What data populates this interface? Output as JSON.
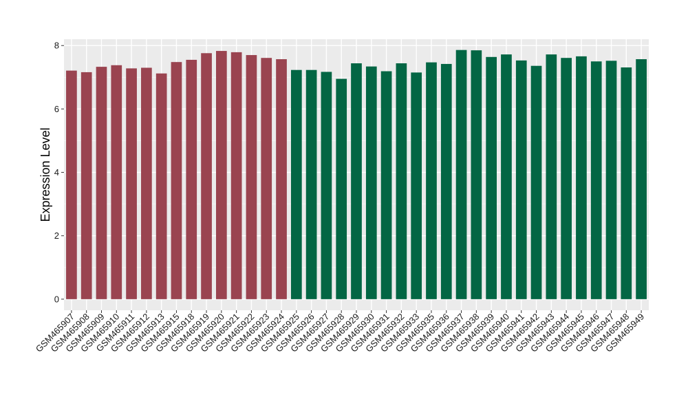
{
  "chart_data": {
    "type": "bar",
    "title": "",
    "xlabel": "",
    "ylabel": "Expression Level",
    "ylim": [
      -0.35,
      8.2
    ],
    "yticks": [
      0,
      2,
      4,
      6,
      8
    ],
    "grid": true,
    "background": "#ebebeb",
    "group_colors": [
      "#9a4450",
      "#036644"
    ],
    "categories": [
      "GSM465907",
      "GSM465908",
      "GSM465909",
      "GSM465910",
      "GSM465911",
      "GSM465912",
      "GSM465913",
      "GSM465915",
      "GSM465918",
      "GSM465919",
      "GSM465920",
      "GSM465921",
      "GSM465922",
      "GSM465923",
      "GSM465924",
      "GSM465925",
      "GSM465926",
      "GSM465927",
      "GSM465928",
      "GSM465929",
      "GSM465930",
      "GSM465931",
      "GSM465932",
      "GSM465933",
      "GSM465935",
      "GSM465936",
      "GSM465937",
      "GSM465938",
      "GSM465939",
      "GSM465940",
      "GSM465941",
      "GSM465942",
      "GSM465943",
      "GSM465944",
      "GSM465945",
      "GSM465946",
      "GSM465947",
      "GSM465948",
      "GSM465949"
    ],
    "values": [
      7.21,
      7.16,
      7.33,
      7.38,
      7.28,
      7.3,
      7.12,
      7.48,
      7.55,
      7.76,
      7.83,
      7.79,
      7.7,
      7.61,
      7.57,
      7.23,
      7.23,
      7.17,
      6.95,
      7.44,
      7.34,
      7.19,
      7.44,
      7.15,
      7.47,
      7.42,
      7.86,
      7.85,
      7.64,
      7.72,
      7.53,
      7.36,
      7.72,
      7.61,
      7.66,
      7.5,
      7.52,
      7.31,
      7.57
    ],
    "group": [
      0,
      0,
      0,
      0,
      0,
      0,
      0,
      0,
      0,
      0,
      0,
      0,
      0,
      0,
      0,
      1,
      1,
      1,
      1,
      1,
      1,
      1,
      1,
      1,
      1,
      1,
      1,
      1,
      1,
      1,
      1,
      1,
      1,
      1,
      1,
      1,
      1,
      1,
      1
    ]
  }
}
